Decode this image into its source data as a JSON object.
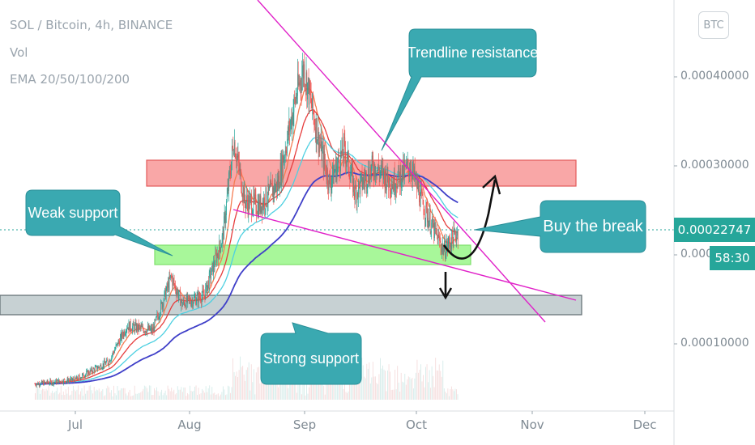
{
  "header": {
    "symbol_line": "SOL / Bitcoin, 4h, BINANCE",
    "volume_label": "Vol",
    "ema_label": "EMA 20/50/100/200"
  },
  "currency_button": "BTC",
  "price_tag": {
    "value": "0.00022747",
    "timer": "58:30",
    "color": "#26a69a"
  },
  "annotations": {
    "trendline_resistance": "Trendline resistance",
    "weak_support": "Weak support",
    "strong_support": "Strong support",
    "buy_the_break": "Buy the break"
  },
  "colors": {
    "callout": "#3aa9b1",
    "resistance_zone": "#f9a7a7",
    "weak_support_zone": "#a8f79a",
    "strong_support_zone": "#c7d1d3",
    "trendline": "#e020c8",
    "candle_up": "#26a69a",
    "candle_down": "#ef5350",
    "ema20": "#f57c52",
    "ema50": "#e63d3d",
    "ema100": "#4dd0e1",
    "ema200": "#3f3fc8"
  },
  "chart_data": {
    "type": "line",
    "title": "SOL / Bitcoin, 4h, BINANCE",
    "xlabel": "",
    "ylabel": "",
    "x_ticks": [
      "Jul",
      "Aug",
      "Sep",
      "Oct",
      "Nov",
      "Dec"
    ],
    "y_ticks": [
      "0.00010000",
      "0.00020000",
      "0.00030000",
      "0.00040000"
    ],
    "ylim": [
      3e-05,
      0.00047
    ],
    "x": [
      "Jun 20",
      "Jul 1",
      "Jul 10",
      "Jul 15",
      "Jul 22",
      "Jul 27",
      "Jul 30",
      "Aug 5",
      "Aug 10",
      "Aug 13",
      "Aug 16",
      "Aug 20",
      "Aug 25",
      "Aug 30",
      "Sep 1",
      "Sep 5",
      "Sep 8",
      "Sep 12",
      "Sep 15",
      "Sep 20",
      "Sep 25",
      "Sep 30",
      "Oct 3",
      "Oct 6",
      "Oct 9",
      "Oct 13"
    ],
    "series": [
      {
        "name": "SOL / Bitcoin",
        "values": [
          5.5e-05,
          6e-05,
          8e-05,
          0.00012,
          0.000115,
          0.000175,
          0.000145,
          0.000155,
          0.00022,
          0.00033,
          0.00026,
          0.000255,
          0.00028,
          0.00038,
          0.00041,
          0.00033,
          0.00028,
          0.00032,
          0.00027,
          0.0003,
          0.00028,
          0.0003,
          0.00026,
          0.00023,
          0.000205,
          0.000227
        ]
      }
    ],
    "grid": false,
    "legend": "top-left"
  }
}
